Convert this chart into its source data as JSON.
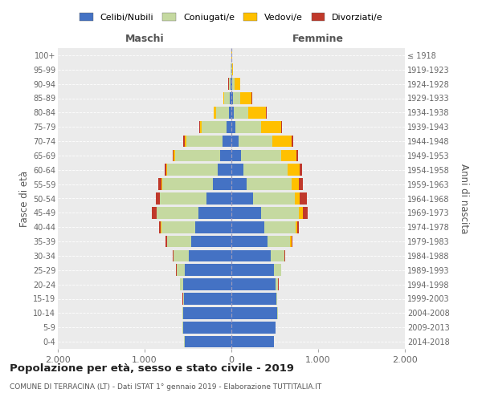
{
  "age_groups": [
    "0-4",
    "5-9",
    "10-14",
    "15-19",
    "20-24",
    "25-29",
    "30-34",
    "35-39",
    "40-44",
    "45-49",
    "50-54",
    "55-59",
    "60-64",
    "65-69",
    "70-74",
    "75-79",
    "80-84",
    "85-89",
    "90-94",
    "95-99",
    "100+"
  ],
  "birth_years": [
    "2014-2018",
    "2009-2013",
    "2004-2008",
    "1999-2003",
    "1994-1998",
    "1989-1993",
    "1984-1988",
    "1979-1983",
    "1974-1978",
    "1969-1973",
    "1964-1968",
    "1959-1963",
    "1954-1958",
    "1949-1953",
    "1944-1948",
    "1939-1943",
    "1934-1938",
    "1929-1933",
    "1924-1928",
    "1919-1923",
    "≤ 1918"
  ],
  "males": {
    "celibi": [
      540,
      560,
      560,
      550,
      560,
      540,
      490,
      460,
      420,
      380,
      290,
      210,
      160,
      130,
      100,
      60,
      30,
      15,
      8,
      3,
      2
    ],
    "coniugati": [
      2,
      3,
      5,
      10,
      30,
      90,
      180,
      280,
      390,
      480,
      530,
      590,
      580,
      520,
      420,
      280,
      150,
      70,
      20,
      5,
      1
    ],
    "vedovi": [
      0,
      0,
      0,
      0,
      0,
      1,
      1,
      1,
      2,
      3,
      4,
      5,
      10,
      15,
      20,
      25,
      20,
      10,
      4,
      1,
      0
    ],
    "divorziati": [
      0,
      0,
      0,
      1,
      2,
      4,
      8,
      15,
      20,
      55,
      50,
      40,
      20,
      15,
      15,
      8,
      4,
      2,
      1,
      0,
      0
    ]
  },
  "females": {
    "nubili": [
      490,
      510,
      530,
      520,
      510,
      490,
      450,
      420,
      380,
      340,
      250,
      180,
      140,
      110,
      80,
      50,
      25,
      15,
      8,
      3,
      2
    ],
    "coniugate": [
      1,
      2,
      3,
      8,
      30,
      80,
      160,
      260,
      360,
      440,
      480,
      510,
      510,
      460,
      390,
      290,
      170,
      90,
      30,
      8,
      2
    ],
    "vedove": [
      0,
      0,
      0,
      0,
      1,
      2,
      5,
      10,
      20,
      40,
      60,
      90,
      140,
      180,
      220,
      230,
      200,
      130,
      60,
      10,
      1
    ],
    "divorziate": [
      0,
      0,
      0,
      1,
      2,
      4,
      8,
      15,
      20,
      55,
      80,
      45,
      25,
      20,
      20,
      15,
      8,
      3,
      1,
      0,
      0
    ]
  },
  "colors": {
    "celibi": "#4472c4",
    "coniugati": "#c5d9a0",
    "vedovi": "#ffc000",
    "divorziati": "#c0392b"
  },
  "title": "Popolazione per età, sesso e stato civile - 2019",
  "subtitle": "COMUNE DI TERRACINA (LT) - Dati ISTAT 1° gennaio 2019 - Elaborazione TUTTITALIA.IT",
  "xlabel_left": "Maschi",
  "xlabel_right": "Femmine",
  "ylabel_left": "Fasce di età",
  "ylabel_right": "Anni di nascita",
  "xlim": 2000,
  "xticklabels": [
    "2.000",
    "1.000",
    "0",
    "1.000",
    "2.000"
  ],
  "bg_color": "#ebebeb",
  "legend_labels": [
    "Celibi/Nubili",
    "Coniugati/e",
    "Vedovi/e",
    "Divorziati/e"
  ]
}
